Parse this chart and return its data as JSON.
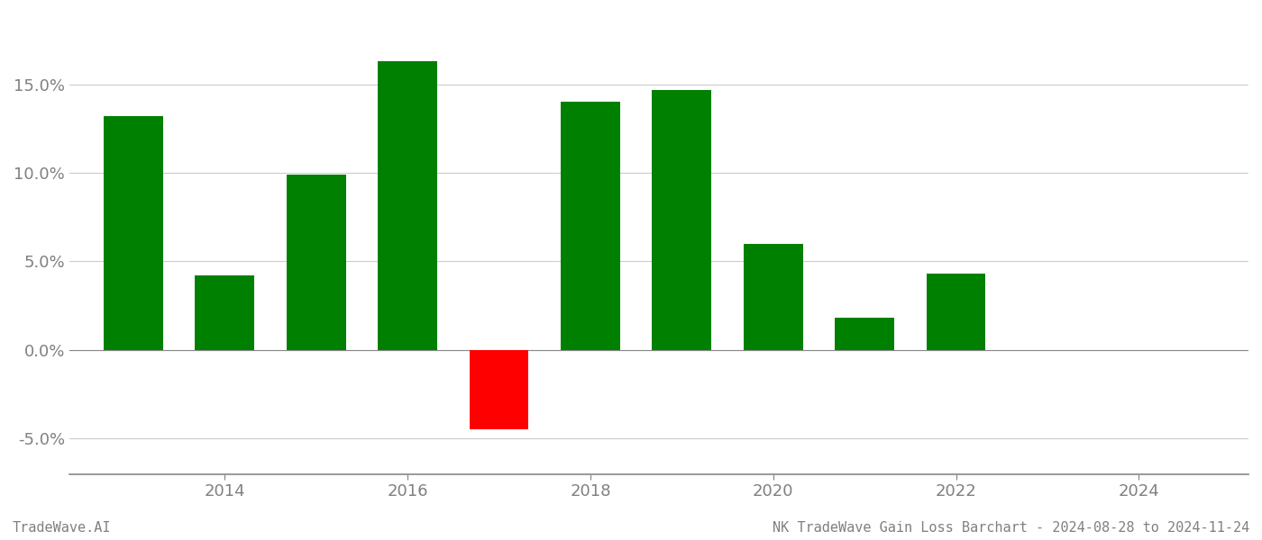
{
  "years": [
    2013,
    2014,
    2015,
    2016,
    2017,
    2018,
    2019,
    2020,
    2021,
    2022
  ],
  "values": [
    0.132,
    0.042,
    0.099,
    0.163,
    -0.045,
    0.14,
    0.147,
    0.06,
    0.018,
    0.043
  ],
  "colors": [
    "#008000",
    "#008000",
    "#008000",
    "#008000",
    "#ff0000",
    "#008000",
    "#008000",
    "#008000",
    "#008000",
    "#008000"
  ],
  "ylim": [
    -0.07,
    0.19
  ],
  "yticks": [
    -0.05,
    0.0,
    0.05,
    0.1,
    0.15
  ],
  "xticks": [
    2014,
    2016,
    2018,
    2020,
    2022,
    2024
  ],
  "xlim": [
    2012.3,
    2025.2
  ],
  "footer_left": "TradeWave.AI",
  "footer_right": "NK TradeWave Gain Loss Barchart - 2024-08-28 to 2024-11-24",
  "background_color": "#ffffff",
  "bar_width": 0.65,
  "grid_color": "#cccccc",
  "spine_color": "#888888",
  "tick_label_color": "#808080",
  "footer_font_size": 11,
  "tick_fontsize": 13
}
